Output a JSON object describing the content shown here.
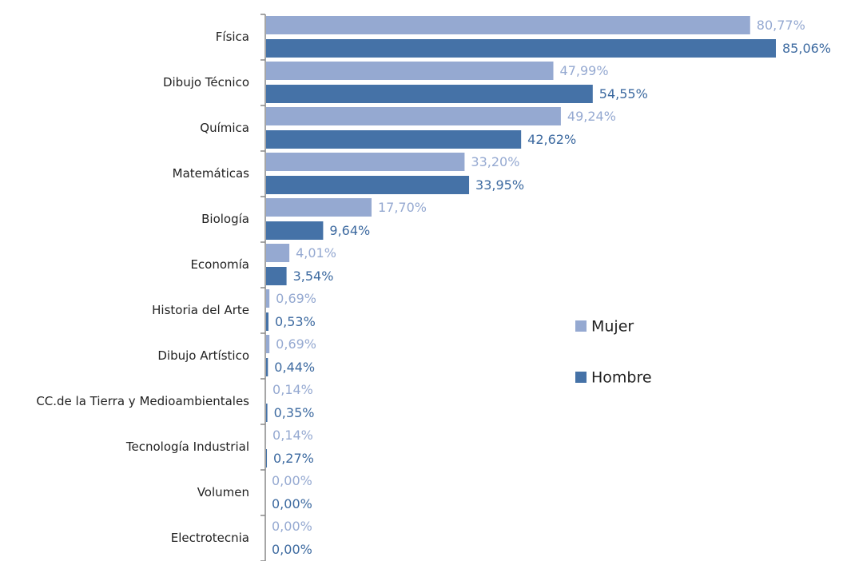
{
  "chart_data": {
    "type": "bar",
    "orientation": "horizontal",
    "categories": [
      "Física",
      "Dibujo Técnico",
      "Química",
      "Matemáticas",
      "Biología",
      "Economía",
      "Historia del Arte",
      "Dibujo Artístico",
      "CC.de la Tierra y Medioambientales",
      "Tecnología Industrial",
      "Volumen",
      "Electrotecnia"
    ],
    "series": [
      {
        "name": "Mujer",
        "color": "#95a9d1",
        "values": [
          80.77,
          47.99,
          49.24,
          33.2,
          17.7,
          4.01,
          0.69,
          0.69,
          0.14,
          0.14,
          0.0,
          0.0
        ],
        "value_labels": [
          "80,77%",
          "47,99%",
          "49,24%",
          "33,20%",
          "17,70%",
          "4,01%",
          "0,69%",
          "0,69%",
          "0,14%",
          "0,14%",
          "0,00%",
          "0,00%"
        ]
      },
      {
        "name": "Hombre",
        "color": "#4572a7",
        "values": [
          85.06,
          54.55,
          42.62,
          33.95,
          9.64,
          3.54,
          0.53,
          0.44,
          0.35,
          0.27,
          0.0,
          0.0
        ],
        "value_labels": [
          "85,06%",
          "54,55%",
          "42,62%",
          "33,95%",
          "9,64%",
          "3,54%",
          "0,53%",
          "0,44%",
          "0,35%",
          "0,27%",
          "0,00%",
          "0,00%"
        ]
      }
    ],
    "legend": "right"
  }
}
